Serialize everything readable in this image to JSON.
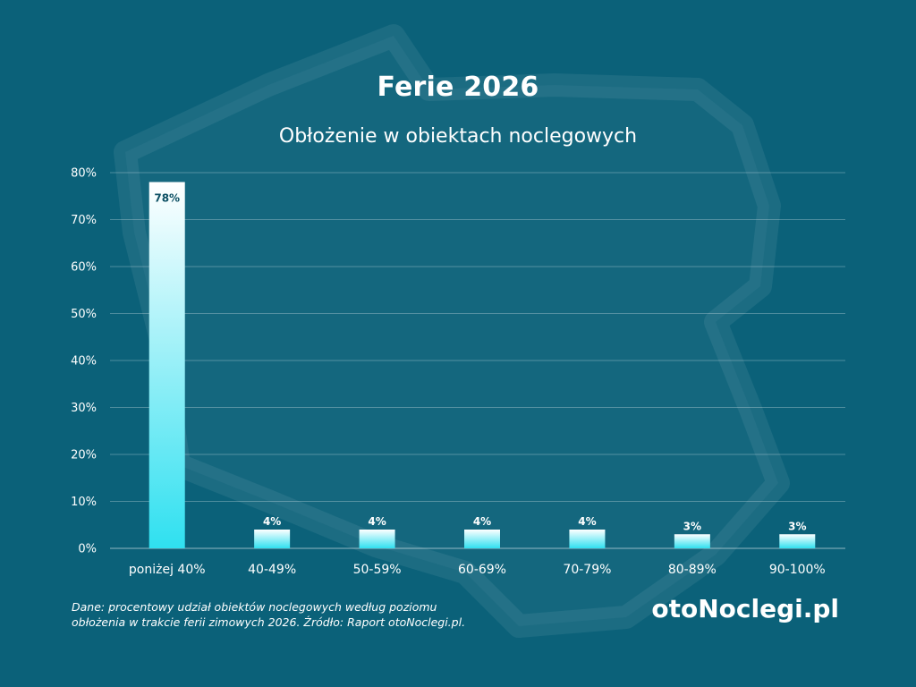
{
  "title": "Ferie 2026",
  "subtitle": "Obłożenie w obiektach noclegowych",
  "footnote": {
    "line1": "Dane: procentowy udział obiektów noclegowych według poziomu",
    "line2": "obłożenia w trakcie ferii zimowych 2026. Źródło: Raport otoNoclegi.pl."
  },
  "brand": "otoNoclegi.pl",
  "colors": {
    "background": "#0b6179",
    "bar_top": "#ffffff",
    "bar_bottom": "#2fe0f0",
    "label_dark": "#0b4f63"
  },
  "chart_data": {
    "type": "bar",
    "title": "Ferie 2026",
    "subtitle": "Obłożenie w obiektach noclegowych",
    "categories": [
      "poniżej 40%",
      "40-49%",
      "50-59%",
      "60-69%",
      "70-79%",
      "80-89%",
      "90-100%"
    ],
    "values": [
      78,
      4,
      4,
      4,
      4,
      3,
      3
    ],
    "value_labels": [
      "78%",
      "4%",
      "4%",
      "4%",
      "4%",
      "3%",
      "3%"
    ],
    "ylim": [
      0,
      80
    ],
    "yticks": [
      0,
      10,
      20,
      30,
      40,
      50,
      60,
      70,
      80
    ],
    "ytick_labels": [
      "0%",
      "10%",
      "20%",
      "30%",
      "40%",
      "50%",
      "60%",
      "70%",
      "80%"
    ],
    "xlabel": "",
    "ylabel": "",
    "grid": true
  }
}
